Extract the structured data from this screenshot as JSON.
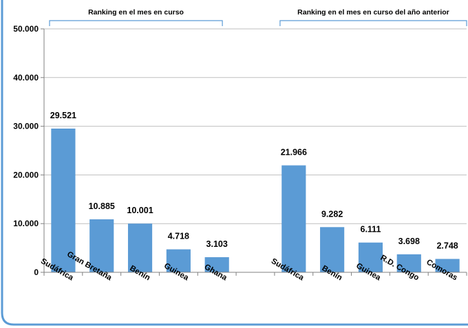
{
  "chart_data": {
    "type": "bar",
    "ylim": [
      0,
      50000
    ],
    "yticks": [
      0,
      10000,
      20000,
      30000,
      40000,
      50000
    ],
    "ytick_labels": [
      "0",
      "10.000",
      "20.000",
      "30.000",
      "40.000",
      "50.000"
    ],
    "grid": true,
    "legend": "none",
    "groups": [
      {
        "title": "Ranking en el mes en curso",
        "categories": [
          "Sudáfrica",
          "Gran Bretaña",
          "Benín",
          "Guinea",
          "Ghana"
        ],
        "values": [
          29521,
          10885,
          10001,
          4718,
          3103
        ],
        "value_labels": [
          "29.521",
          "10.885",
          "10.001",
          "4.718",
          "3.103"
        ]
      },
      {
        "title": "Ranking en el mes en curso del año anterior",
        "categories": [
          "Sudáfrica",
          "Benín",
          "Guinea",
          "R.D. Congo",
          "Comoras"
        ],
        "values": [
          21966,
          9282,
          6111,
          3698,
          2748
        ],
        "value_labels": [
          "21.966",
          "9.282",
          "6.111",
          "3.698",
          "2.748"
        ]
      }
    ],
    "colors": {
      "bar": "#5B9BD5",
      "axis": "#808080",
      "grid": "#BFBFBF",
      "bracket": "#5B9BD5",
      "frame": "#5B9BD5"
    }
  }
}
